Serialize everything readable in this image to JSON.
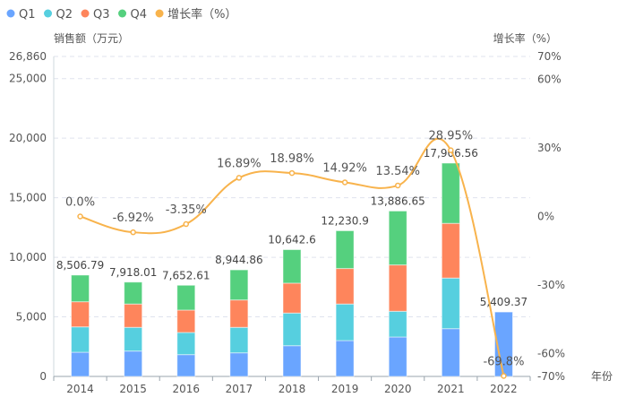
{
  "chart_data": {
    "type": "bar",
    "stacked": true,
    "categories": [
      "2014",
      "2015",
      "2016",
      "2017",
      "2018",
      "2019",
      "2020",
      "2021",
      "2022"
    ],
    "series": [
      {
        "name": "Q1",
        "color": "#6aa5ff",
        "values": [
          2030,
          2130,
          1830,
          1980,
          2580,
          3010,
          3310,
          4010,
          5409.37
        ]
      },
      {
        "name": "Q2",
        "color": "#56cfdf",
        "values": [
          2130,
          1990,
          1860,
          2140,
          2740,
          3070,
          2160,
          4250,
          0
        ]
      },
      {
        "name": "Q3",
        "color": "#fe855c",
        "values": [
          2110,
          1960,
          1880,
          2300,
          2510,
          2980,
          3890,
          4590,
          0
        ]
      },
      {
        "name": "Q4",
        "color": "#55d07e",
        "values": [
          2237,
          1838,
          2083,
          2525,
          2813,
          3171,
          4527,
          5057,
          0
        ]
      }
    ],
    "totals": [
      "8,506.79",
      "7,918.01",
      "7,652.61",
      "8,944.86",
      "10,642.6",
      "12,230.9",
      "13,886.65",
      "17,906.56",
      "5,409.37"
    ],
    "line": {
      "name": "增长率（%）",
      "color": "#f8b34c",
      "values": [
        0.0,
        -6.92,
        -3.35,
        16.89,
        18.98,
        14.92,
        13.54,
        28.95,
        -69.8
      ],
      "labels": [
        "0.0%",
        "-6.92%",
        "-3.35%",
        "16.89%",
        "18.98%",
        "14.92%",
        "13.54%",
        "28.95%",
        "-69.8%"
      ]
    },
    "ylabel": "销售额（万元）",
    "y2label": "增长率（%）",
    "xlabel": "年份",
    "ylim": [
      0,
      26860
    ],
    "y2lim": [
      -70,
      70
    ],
    "yticks": [
      "0",
      "5,000",
      "10,000",
      "15,000",
      "20,000",
      "25,000",
      "26,860"
    ],
    "ytick_values": [
      0,
      5000,
      10000,
      15000,
      20000,
      25000,
      26860
    ],
    "y2ticks": [
      "-70%",
      "-60%",
      "-30%",
      "0%",
      "30%",
      "60%",
      "70%"
    ],
    "y2tick_values": [
      -70,
      -60,
      -30,
      0,
      30,
      60,
      70
    ],
    "legend": "top-left",
    "grid": true
  }
}
